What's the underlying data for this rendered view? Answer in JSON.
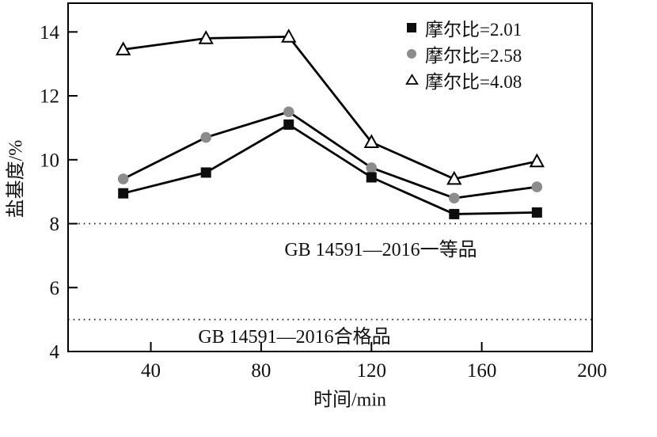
{
  "chart_data": {
    "type": "line",
    "title": "",
    "x": [
      30,
      60,
      90,
      120,
      150,
      180
    ],
    "series": [
      {
        "name": "摩尔比=2.01",
        "marker": "filled-square",
        "marker_color": "#0d0d0d",
        "values": [
          8.95,
          9.6,
          11.1,
          9.45,
          8.3,
          8.35
        ]
      },
      {
        "name": "摩尔比=2.58",
        "marker": "filled-circle",
        "marker_color": "#8c8c8c",
        "values": [
          9.4,
          10.7,
          11.5,
          9.75,
          8.8,
          9.15
        ]
      },
      {
        "name": "摩尔比=4.08",
        "marker": "open-triangle",
        "marker_color": "#ffffff",
        "values": [
          13.45,
          13.8,
          13.85,
          10.55,
          9.4,
          9.95
        ]
      }
    ],
    "line_color": "#000000",
    "xlabel": "时间/min",
    "ylabel": "盐基度/%",
    "xlim": [
      10,
      200
    ],
    "ylim": [
      4,
      14.9
    ],
    "x_ticks": [
      40,
      80,
      120,
      160,
      200
    ],
    "y_ticks": [
      4,
      6,
      8,
      10,
      12,
      14
    ],
    "grid": false,
    "legend_position": "top-right-inside",
    "reference_lines": [
      {
        "value": 8.0,
        "label": "GB 14591—2016一等品",
        "style": "dotted"
      },
      {
        "value": 5.0,
        "label": "GB 14591—2016合格品",
        "style": "dotted"
      }
    ]
  }
}
